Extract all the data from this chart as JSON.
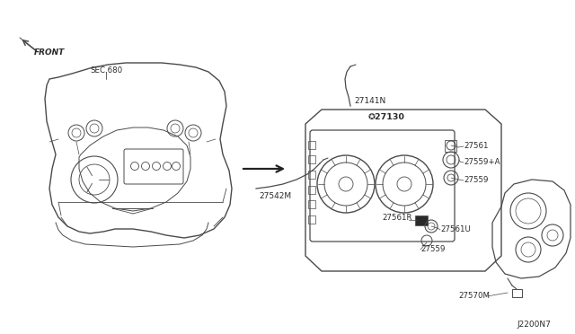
{
  "bg_color": "#ffffff",
  "lc": "#4a4a4a",
  "tc": "#2a2a2a",
  "labels": {
    "front": "FRONT",
    "sec680": "SEC.680",
    "p27141N": "27141N",
    "p27542M": "27542M",
    "p27130": "✪27130",
    "p27561": "27561",
    "p27559A": "27559+A",
    "p27559t": "27559",
    "p27561R": "27561R",
    "p27561U": "27561U",
    "p27559b": "27559",
    "p27570M": "27570M",
    "diag": "J2200N7"
  },
  "figsize": [
    6.4,
    3.72
  ],
  "dpi": 100
}
